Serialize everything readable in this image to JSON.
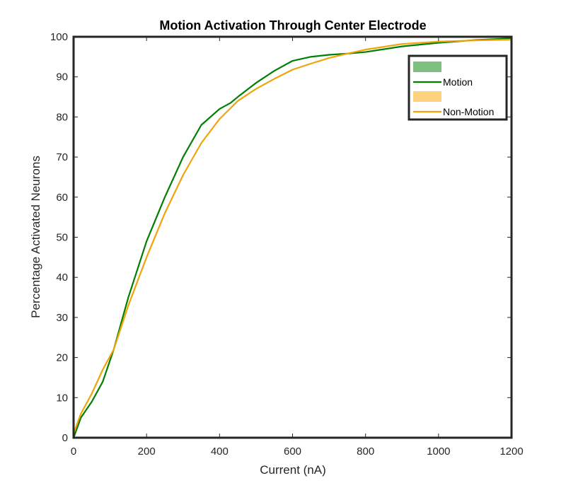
{
  "chart_data": {
    "type": "line",
    "title": "Motion Activation Through Center Electrode",
    "xlabel": "Current (nA)",
    "ylabel": "Percentage Activated Neurons",
    "xlim": [
      0,
      1200
    ],
    "ylim": [
      0,
      100
    ],
    "x_ticks": [
      0,
      200,
      400,
      600,
      800,
      1000,
      1200
    ],
    "y_ticks": [
      0,
      10,
      20,
      30,
      40,
      50,
      60,
      70,
      80,
      90,
      100
    ],
    "x_tick_labels": [
      "0",
      "200",
      "400",
      "600",
      "800",
      "1000",
      "1200"
    ],
    "y_tick_labels": [
      "0",
      "10",
      "20",
      "30",
      "40",
      "50",
      "60",
      "70",
      "80",
      "90",
      "100"
    ],
    "grid": false,
    "legend_position": "top-right",
    "series": [
      {
        "name": "Motion",
        "color": "#007F00",
        "band_color": "#7FBF7F",
        "x": [
          0,
          20,
          50,
          80,
          110,
          150,
          200,
          250,
          300,
          350,
          400,
          430,
          450,
          500,
          550,
          600,
          650,
          700,
          750,
          800,
          900,
          1000,
          1100,
          1200
        ],
        "y": [
          0,
          5,
          9,
          14,
          22,
          35,
          49,
          60,
          70,
          78,
          82,
          83.5,
          85,
          88.5,
          91.5,
          94,
          95,
          95.5,
          95.8,
          96.2,
          97.6,
          98.5,
          99.2,
          99.6
        ]
      },
      {
        "name": "Non-Motion",
        "color": "#F0A30A",
        "band_color": "#FFD27F",
        "x": [
          0,
          20,
          50,
          80,
          110,
          150,
          200,
          250,
          300,
          350,
          400,
          450,
          500,
          550,
          600,
          650,
          700,
          750,
          800,
          900,
          1000,
          1100,
          1200
        ],
        "y": [
          1,
          6,
          11,
          17,
          22,
          33,
          45,
          56,
          65.5,
          73.5,
          79.5,
          84,
          87,
          89.5,
          91.8,
          93.3,
          94.7,
          95.8,
          96.8,
          98.2,
          98.8,
          99.1,
          99.3
        ]
      }
    ]
  }
}
